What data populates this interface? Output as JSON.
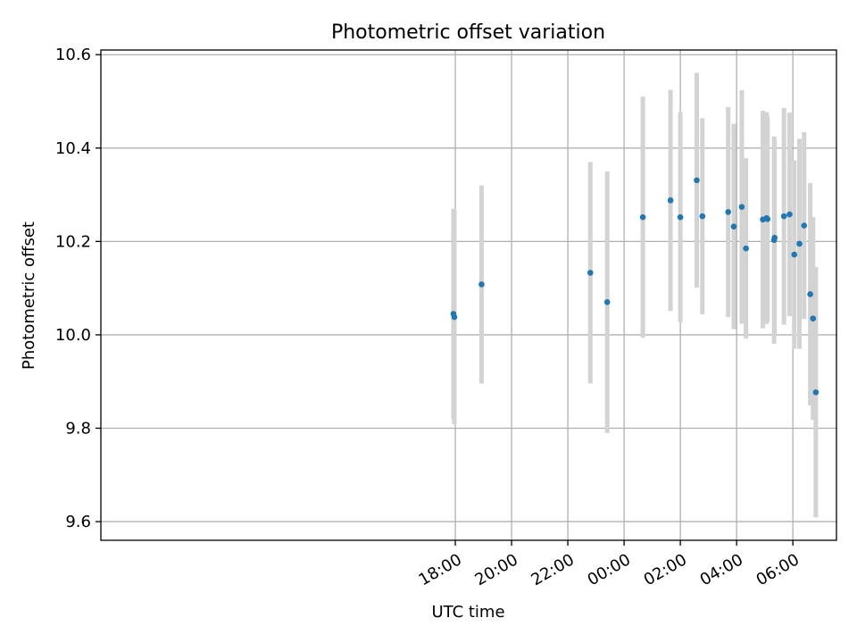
{
  "chart_data": {
    "type": "scatter",
    "title": "Photometric offset variation",
    "xlabel": "UTC time",
    "ylabel": "Photometric offset",
    "grid": true,
    "colors": {
      "points": "#1f77b4",
      "errorbars": "#d3d3d3",
      "grid": "#b0b0b0",
      "axes": "#000000"
    },
    "x_axis": {
      "unit": "hours relative to 00:00 UTC",
      "range": [
        -18.6,
        7.55
      ],
      "ticks": [
        {
          "value": -6,
          "label": "18:00"
        },
        {
          "value": -4,
          "label": "20:00"
        },
        {
          "value": -2,
          "label": "22:00"
        },
        {
          "value": 0,
          "label": "00:00"
        },
        {
          "value": 2,
          "label": "02:00"
        },
        {
          "value": 4,
          "label": "04:00"
        },
        {
          "value": 6,
          "label": "06:00"
        }
      ]
    },
    "y_axis": {
      "range": [
        9.56,
        10.61
      ],
      "ticks": [
        {
          "value": 9.6,
          "label": "9.6"
        },
        {
          "value": 9.8,
          "label": "9.8"
        },
        {
          "value": 10.0,
          "label": "10.0"
        },
        {
          "value": 10.2,
          "label": "10.2"
        },
        {
          "value": 10.4,
          "label": "10.4"
        },
        {
          "value": 10.6,
          "label": "10.6"
        }
      ]
    },
    "points": [
      {
        "time": "17:56",
        "y": 10.045,
        "err": 0.225
      },
      {
        "time": "17:58",
        "y": 10.038,
        "err": 0.23
      },
      {
        "time": "18:56",
        "y": 10.108,
        "err": 0.212
      },
      {
        "time": "22:48",
        "y": 10.133,
        "err": 0.237
      },
      {
        "time": "23:24",
        "y": 10.07,
        "err": 0.28
      },
      {
        "time": "00:40",
        "y": 10.252,
        "err": 0.258
      },
      {
        "time": "01:39",
        "y": 10.288,
        "err": 0.237
      },
      {
        "time": "02:00",
        "y": 10.252,
        "err": 0.225
      },
      {
        "time": "02:35",
        "y": 10.331,
        "err": 0.23
      },
      {
        "time": "02:47",
        "y": 10.254,
        "err": 0.21
      },
      {
        "time": "03:42",
        "y": 10.263,
        "err": 0.225
      },
      {
        "time": "03:54",
        "y": 10.232,
        "err": 0.22
      },
      {
        "time": "04:11",
        "y": 10.274,
        "err": 0.25
      },
      {
        "time": "04:20",
        "y": 10.185,
        "err": 0.193
      },
      {
        "time": "04:56",
        "y": 10.247,
        "err": 0.233
      },
      {
        "time": "05:04",
        "y": 10.25,
        "err": 0.227
      },
      {
        "time": "05:06",
        "y": 10.248,
        "err": 0.22
      },
      {
        "time": "05:20",
        "y": 10.203,
        "err": 0.222
      },
      {
        "time": "05:21",
        "y": 10.208,
        "err": 0.21
      },
      {
        "time": "05:41",
        "y": 10.254,
        "err": 0.232
      },
      {
        "time": "05:53",
        "y": 10.258,
        "err": 0.218
      },
      {
        "time": "06:03",
        "y": 10.172,
        "err": 0.202
      },
      {
        "time": "06:14",
        "y": 10.195,
        "err": 0.225
      },
      {
        "time": "06:24",
        "y": 10.234,
        "err": 0.2
      },
      {
        "time": "06:37",
        "y": 10.087,
        "err": 0.238
      },
      {
        "time": "06:43",
        "y": 10.035,
        "err": 0.217
      },
      {
        "time": "06:49",
        "y": 9.877,
        "err": 0.268
      }
    ]
  }
}
